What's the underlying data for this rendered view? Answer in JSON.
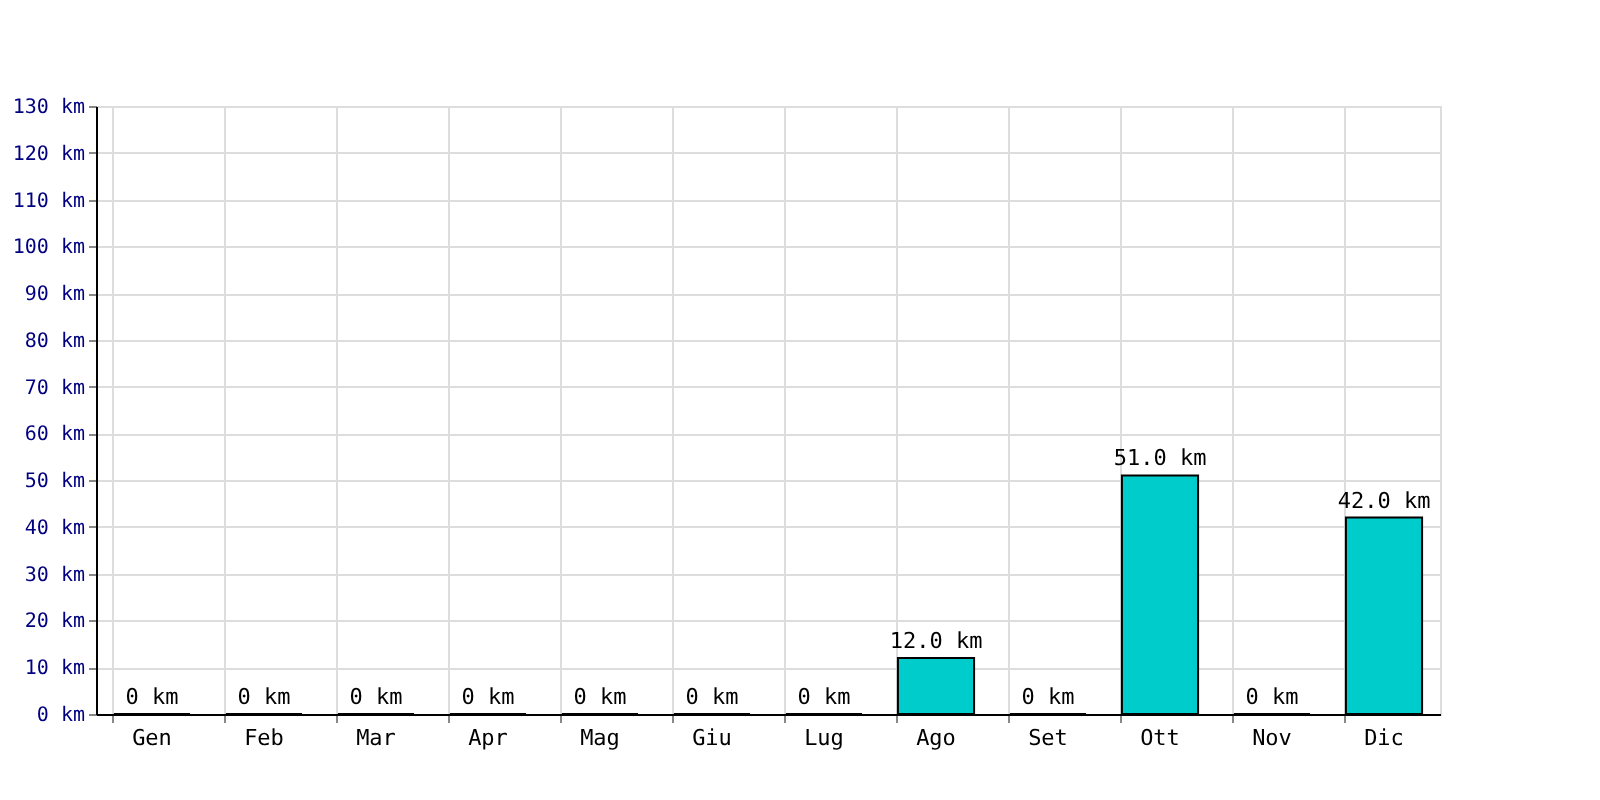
{
  "chart_data": {
    "type": "bar",
    "categories": [
      "Gen",
      "Feb",
      "Mar",
      "Apr",
      "Mag",
      "Giu",
      "Lug",
      "Ago",
      "Set",
      "Ott",
      "Nov",
      "Dic"
    ],
    "values": [
      0,
      0,
      0,
      0,
      0,
      0,
      0,
      12.0,
      0,
      51.0,
      0,
      42.0
    ],
    "value_labels": [
      "0 km",
      "0 km",
      "0 km",
      "0 km",
      "0 km",
      "0 km",
      "0 km",
      "12.0 km",
      "0 km",
      "51.0 km",
      "0 km",
      "42.0 km"
    ],
    "color": "#00cccc",
    "ylim": [
      0,
      130
    ],
    "yticks": [
      {
        "value": 0,
        "label": "0 km"
      },
      {
        "value": 10,
        "label": "10 km"
      },
      {
        "value": 20,
        "label": "20 km"
      },
      {
        "value": 30,
        "label": "30 km"
      },
      {
        "value": 40,
        "label": "40 km"
      },
      {
        "value": 50,
        "label": "50 km"
      },
      {
        "value": 60,
        "label": "60 km"
      },
      {
        "value": 70,
        "label": "70 km"
      },
      {
        "value": 80,
        "label": "80 km"
      },
      {
        "value": 90,
        "label": "90 km"
      },
      {
        "value": 100,
        "label": "100 km"
      },
      {
        "value": 110,
        "label": "110 km"
      },
      {
        "value": 120,
        "label": "120 km"
      },
      {
        "value": 130,
        "label": "130 km"
      }
    ],
    "grid": true
  }
}
